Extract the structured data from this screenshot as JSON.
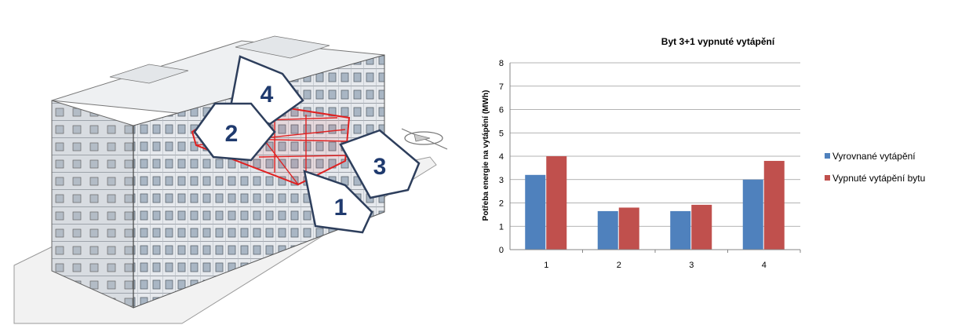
{
  "illustration": {
    "callouts": [
      "4",
      "2",
      "3",
      "1"
    ],
    "highlight_color": "#e02020"
  },
  "chart_data": {
    "type": "bar",
    "title": "Byt 3+1 vypnuté vytápění",
    "xlabel": "",
    "ylabel": "Potřeba energie na vytápění (MWh)",
    "categories": [
      "1",
      "2",
      "3",
      "4"
    ],
    "ylim": [
      0,
      8
    ],
    "yticks": [
      0,
      1,
      2,
      3,
      4,
      5,
      6,
      7,
      8
    ],
    "grid": true,
    "legend_position": "right",
    "series": [
      {
        "name": "Vyrovnané vytápění",
        "color": "#4f81bd",
        "values": [
          3.2,
          1.65,
          1.65,
          3.0
        ]
      },
      {
        "name": "Vypnuté vytápění bytu",
        "color": "#c0504d",
        "values": [
          4.0,
          1.8,
          1.92,
          3.8
        ]
      }
    ]
  }
}
